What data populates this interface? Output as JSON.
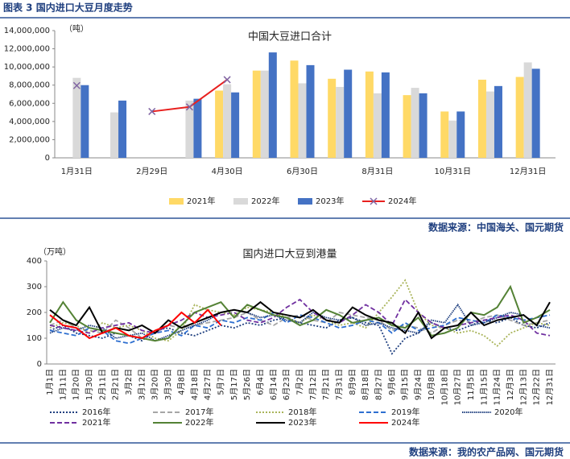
{
  "header": {
    "title": "图表 3  国内进口大豆月度走势"
  },
  "sources": [
    "数据来源：中国海关、国元期货",
    "数据来源：我的农产品网、国元期货"
  ],
  "chart_data": [
    {
      "type": "bar",
      "title": "中国大豆进口合计",
      "unit": "（吨）",
      "categories": [
        "1月31日",
        null,
        "2月29日",
        null,
        "4月30日",
        null,
        "6月30日",
        null,
        "8月31日",
        null,
        "10月31日",
        null,
        "12月31日"
      ],
      "ylim": [
        0,
        14000000
      ],
      "yticks": [
        0,
        {
          "value": 2000000,
          "label": "2,000,000"
        },
        {
          "value": 4000000,
          "label": "4,000,000"
        },
        {
          "value": 6000000,
          "label": "6,000,000"
        },
        {
          "value": 8000000,
          "label": "8,000,000"
        },
        {
          "value": 10000000,
          "label": "10,000,000"
        },
        {
          "value": 12000000,
          "label": "12,000,000"
        },
        {
          "value": 14000000,
          "label": "14,000,000"
        }
      ],
      "series": [
        {
          "name": "2021年",
          "color": "#ffd966",
          "values": [
            null,
            null,
            null,
            null,
            7400000,
            9600000,
            10700000,
            8700000,
            9500000,
            6900000,
            5100000,
            8600000,
            8900000
          ]
        },
        {
          "name": "2022年",
          "color": "#d9d9d9",
          "values": [
            8800000,
            5000000,
            null,
            6300000,
            8100000,
            9600000,
            8200000,
            7800000,
            7100000,
            7700000,
            4100000,
            7300000,
            10500000
          ]
        },
        {
          "name": "2023年",
          "color": "#4472c4",
          "values": [
            8000000,
            6300000,
            null,
            6500000,
            7200000,
            11600000,
            10200000,
            9700000,
            9400000,
            7100000,
            5100000,
            7900000,
            9800000
          ]
        },
        {
          "name": "2024年",
          "color": "#e8201e",
          "type": "line",
          "marker": "x",
          "values": [
            7950000,
            null,
            5100000,
            5600000,
            8600000,
            null,
            null,
            null,
            null,
            null,
            null,
            null,
            null
          ]
        }
      ]
    },
    {
      "type": "line",
      "title": "国内进口大豆到港量",
      "unit": "（万吨）",
      "categories": [
        "1月1日",
        "1月11日",
        "1月20日",
        "1月30日",
        "2月11日",
        "2月21日",
        "3月2日",
        "3月12日",
        "3月20日",
        "3月30日",
        "4月8日",
        "4月18日",
        "4月27日",
        "5月7日",
        "5月17日",
        "5月26日",
        "6月4日",
        "6月14日",
        "6月23日",
        "7月2日",
        "7月12日",
        "7月21日",
        "7月31日",
        "8月9日",
        "8月18日",
        "8月27日",
        "9月6日",
        "9月15日",
        "9月24日",
        "10月8日",
        "10月18日",
        "10月27日",
        "11月5日",
        "11月15日",
        "11月24日",
        "12月3日",
        "12月13日",
        "12月22日",
        "12月31日"
      ],
      "ylim": [
        0,
        400
      ],
      "yticks": [
        0,
        100,
        200,
        300,
        400
      ],
      "series": [
        {
          "name": "2016年",
          "color": "#1f3f7f",
          "style": "dotted",
          "values": [
            130,
            150,
            120,
            110,
            100,
            120,
            110,
            90,
            130,
            140,
            120,
            110,
            130,
            150,
            140,
            160,
            150,
            170,
            180,
            160,
            150,
            140,
            170,
            180,
            160,
            150,
            40,
            100,
            120,
            160,
            140,
            130,
            150,
            170,
            160,
            180,
            150,
            140,
            160
          ]
        },
        {
          "name": "2017年",
          "color": "#a6a6a6",
          "style": "dashed",
          "values": [
            150,
            170,
            140,
            130,
            120,
            170,
            140,
            100,
            120,
            150,
            140,
            150,
            160,
            170,
            180,
            200,
            170,
            150,
            180,
            190,
            170,
            160,
            200,
            190,
            180,
            170,
            130,
            150,
            140,
            120,
            150,
            170,
            160,
            180,
            190,
            170,
            150,
            160,
            170
          ]
        },
        {
          "name": "2018年",
          "color": "#a9b45a",
          "style": "dotted",
          "values": [
            140,
            160,
            150,
            120,
            160,
            140,
            150,
            130,
            100,
            90,
            130,
            230,
            210,
            200,
            190,
            220,
            210,
            200,
            180,
            160,
            190,
            170,
            150,
            160,
            140,
            200,
            260,
            325,
            200,
            150,
            140,
            120,
            130,
            110,
            70,
            120,
            140,
            160,
            150
          ]
        },
        {
          "name": "2019年",
          "color": "#2e6fd0",
          "style": "dashed",
          "values": [
            130,
            120,
            110,
            140,
            130,
            90,
            80,
            100,
            120,
            130,
            110,
            150,
            140,
            170,
            160,
            180,
            170,
            200,
            160,
            190,
            180,
            160,
            140,
            150,
            170,
            160,
            120,
            160,
            130,
            140,
            150,
            180,
            170,
            160,
            190,
            180,
            170,
            180,
            190
          ]
        },
        {
          "name": "2020年",
          "color": "#1f3f7f",
          "style": "dense",
          "values": [
            120,
            140,
            130,
            150,
            140,
            100,
            110,
            120,
            90,
            110,
            130,
            150,
            170,
            200,
            210,
            200,
            180,
            190,
            170,
            160,
            200,
            180,
            170,
            180,
            150,
            160,
            140,
            130,
            120,
            170,
            160,
            230,
            150,
            160,
            180,
            200,
            190,
            150,
            140
          ]
        },
        {
          "name": "2021年",
          "color": "#7030a0",
          "style": "dashed",
          "values": [
            150,
            140,
            130,
            120,
            140,
            150,
            160,
            130,
            120,
            150,
            170,
            200,
            180,
            190,
            200,
            170,
            160,
            180,
            220,
            250,
            200,
            170,
            160,
            190,
            230,
            200,
            150,
            250,
            200,
            160,
            140,
            150,
            160,
            170,
            180,
            190,
            170,
            120,
            110
          ]
        },
        {
          "name": "2022年",
          "color": "#548235",
          "style": "solid",
          "values": [
            160,
            240,
            170,
            140,
            130,
            120,
            110,
            100,
            90,
            100,
            150,
            200,
            220,
            240,
            180,
            230,
            210,
            190,
            180,
            150,
            170,
            210,
            190,
            160,
            170,
            180,
            150,
            140,
            180,
            110,
            120,
            140,
            200,
            190,
            220,
            300,
            160,
            180,
            210
          ]
        },
        {
          "name": "2023年",
          "color": "#000000",
          "style": "solid",
          "values": [
            210,
            170,
            150,
            220,
            120,
            140,
            130,
            150,
            120,
            170,
            140,
            160,
            180,
            200,
            210,
            200,
            240,
            200,
            190,
            180,
            210,
            170,
            160,
            220,
            190,
            170,
            160,
            120,
            200,
            100,
            140,
            150,
            200,
            150,
            170,
            180,
            190,
            150,
            240
          ]
        },
        {
          "name": "2024年",
          "color": "#ff0000",
          "style": "solid",
          "values": [
            190,
            150,
            140,
            100,
            120,
            140,
            110,
            100,
            130,
            150,
            200,
            160,
            210,
            150,
            null,
            null,
            null,
            null,
            null,
            null,
            null,
            null,
            null,
            null,
            null,
            null,
            null,
            null,
            null,
            null,
            null,
            null,
            null,
            null,
            null,
            null,
            null,
            null,
            null
          ]
        }
      ]
    }
  ]
}
